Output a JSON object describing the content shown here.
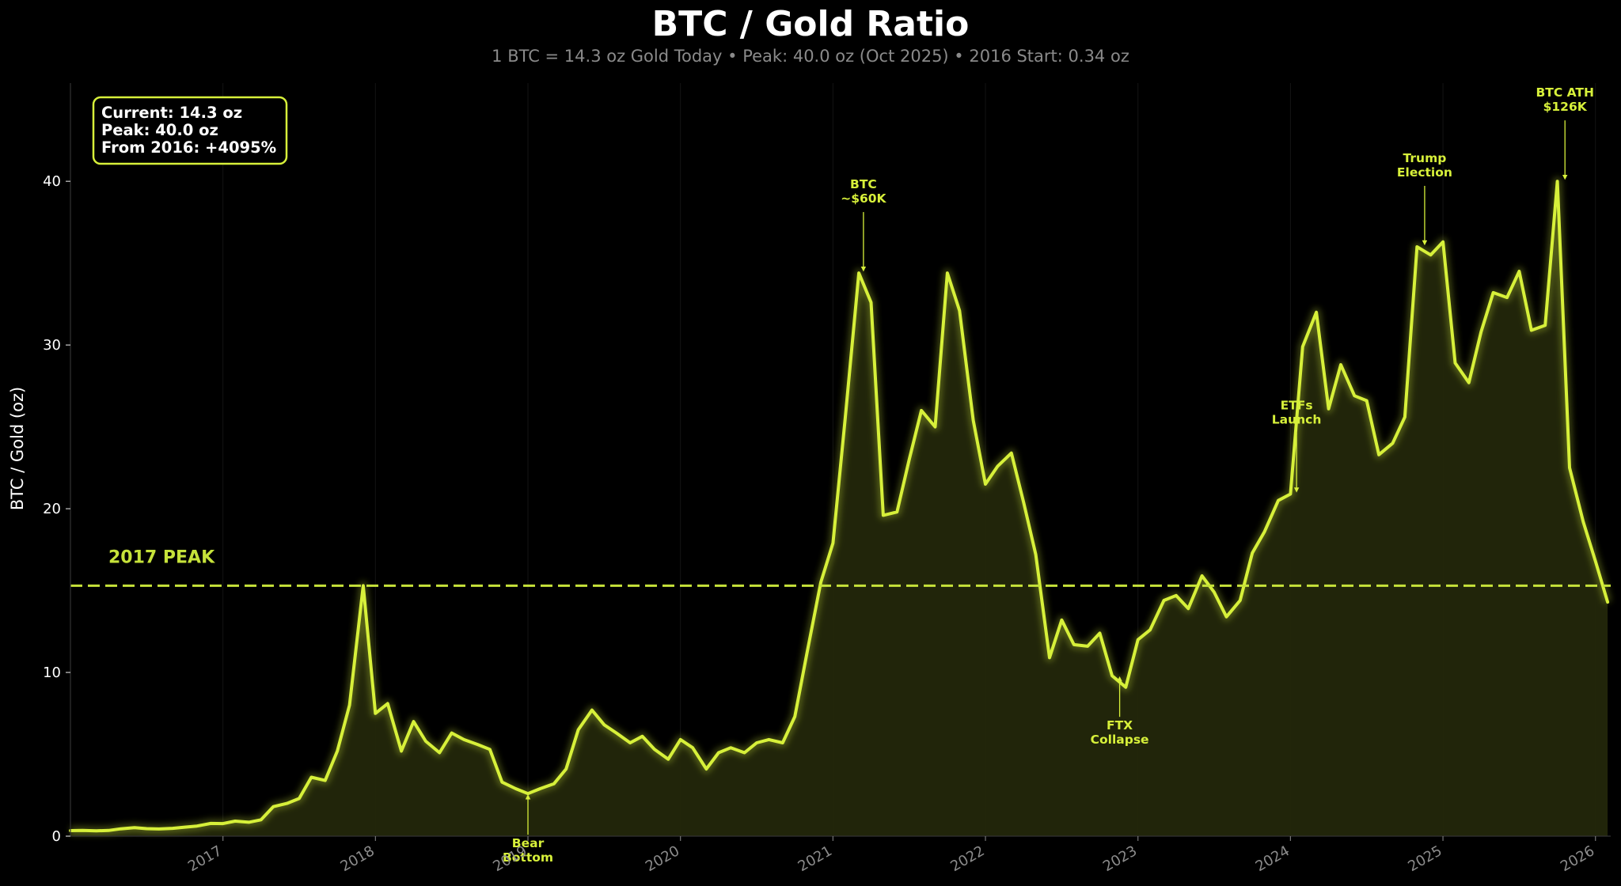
{
  "title": "BTC / Gold Ratio",
  "subtitle": "1 BTC = 14.3 oz Gold Today  •  Peak: 40.0 oz (Oct 2025)  •  2016 Start: 0.34 oz",
  "info_box": [
    "Current: 14.3 oz",
    "Peak: 40.0 oz",
    "From 2016: +4095%"
  ],
  "colors": {
    "line": "#d7f03a",
    "fill": "#23270b",
    "background": "#000000",
    "reference": "#c6e23a"
  },
  "chart_data": {
    "type": "area",
    "ylabel": "BTC / Gold (oz)",
    "xlim": [
      2016.0,
      2026.1
    ],
    "ylim": [
      0,
      46
    ],
    "y_ticks": [
      0,
      10,
      20,
      30,
      40
    ],
    "x_ticks": [
      {
        "value": 2017.0,
        "label": "2017"
      },
      {
        "value": 2018.0,
        "label": "2018"
      },
      {
        "value": 2019.0,
        "label": "2019"
      },
      {
        "value": 2020.0,
        "label": "2020"
      },
      {
        "value": 2021.0,
        "label": "2021"
      },
      {
        "value": 2022.0,
        "label": "2022"
      },
      {
        "value": 2023.0,
        "label": "2023"
      },
      {
        "value": 2024.0,
        "label": "2024"
      },
      {
        "value": 2025.0,
        "label": "2025"
      },
      {
        "value": 2026.0,
        "label": "2026"
      }
    ],
    "grid": false,
    "reference_line": {
      "y": 15.3,
      "label": "2017 PEAK"
    },
    "series": [
      {
        "x": [
          2016.0,
          2016.08,
          2016.17,
          2016.25,
          2016.33,
          2016.42,
          2016.5,
          2016.58,
          2016.67,
          2016.75,
          2016.83,
          2016.92,
          2017.0,
          2017.08,
          2017.17,
          2017.25,
          2017.33,
          2017.42,
          2017.5,
          2017.58,
          2017.67,
          2017.75,
          2017.83,
          2017.92,
          2018.0,
          2018.08,
          2018.17,
          2018.25,
          2018.33,
          2018.42,
          2018.5,
          2018.58,
          2018.67,
          2018.75,
          2018.83,
          2018.92,
          2019.0,
          2019.08,
          2019.17,
          2019.25,
          2019.33,
          2019.42,
          2019.5,
          2019.58,
          2019.67,
          2019.75,
          2019.83,
          2019.92,
          2020.0,
          2020.08,
          2020.17,
          2020.25,
          2020.33,
          2020.42,
          2020.5,
          2020.58,
          2020.67,
          2020.75,
          2020.83,
          2020.92,
          2021.0,
          2021.08,
          2021.17,
          2021.25,
          2021.33,
          2021.42,
          2021.5,
          2021.58,
          2021.67,
          2021.75,
          2021.83,
          2021.92,
          2022.0,
          2022.08,
          2022.17,
          2022.25,
          2022.33,
          2022.42,
          2022.5,
          2022.58,
          2022.67,
          2022.75,
          2022.83,
          2022.92,
          2023.0,
          2023.08,
          2023.17,
          2023.25,
          2023.33,
          2023.42,
          2023.5,
          2023.58,
          2023.67,
          2023.75,
          2023.83,
          2023.92,
          2024.0,
          2024.08,
          2024.17,
          2024.25,
          2024.33,
          2024.42,
          2024.5,
          2024.58,
          2024.67,
          2024.75,
          2024.83,
          2024.92,
          2025.0,
          2025.08,
          2025.17,
          2025.25,
          2025.33,
          2025.42,
          2025.5,
          2025.58,
          2025.67,
          2025.75,
          2025.83,
          2025.92,
          2026.0,
          2026.08
        ],
        "y": [
          0.34,
          0.35,
          0.33,
          0.35,
          0.45,
          0.52,
          0.46,
          0.44,
          0.48,
          0.55,
          0.62,
          0.78,
          0.77,
          0.92,
          0.85,
          1.0,
          1.8,
          2.0,
          2.3,
          3.6,
          3.4,
          5.2,
          8.0,
          15.3,
          7.5,
          8.1,
          5.2,
          7.0,
          5.8,
          5.1,
          6.3,
          5.9,
          5.6,
          5.3,
          3.3,
          2.9,
          2.6,
          2.9,
          3.2,
          4.1,
          6.5,
          7.7,
          6.8,
          6.3,
          5.7,
          6.1,
          5.3,
          4.7,
          5.9,
          5.4,
          4.1,
          5.1,
          5.4,
          5.1,
          5.7,
          5.9,
          5.7,
          7.3,
          11.2,
          15.5,
          17.9,
          25.5,
          34.4,
          32.6,
          19.6,
          19.8,
          23.0,
          26.0,
          25.0,
          34.4,
          32.1,
          25.4,
          21.5,
          22.6,
          23.4,
          20.4,
          17.2,
          10.9,
          13.2,
          11.7,
          11.6,
          12.4,
          9.8,
          9.1,
          12.0,
          12.6,
          14.4,
          14.7,
          13.9,
          15.9,
          14.9,
          13.4,
          14.4,
          17.3,
          18.6,
          20.5,
          20.9,
          29.9,
          32.0,
          26.1,
          28.8,
          26.9,
          26.6,
          23.3,
          24.0,
          25.6,
          36.0,
          35.5,
          36.3,
          28.9,
          27.7,
          30.8,
          33.2,
          32.9,
          34.5,
          30.9,
          31.2,
          40.0,
          22.5,
          19.2,
          16.8,
          14.3
        ]
      }
    ],
    "annotations": [
      {
        "x": 2019.0,
        "y": 2.6,
        "label": [
          "Bear",
          "Bottom"
        ],
        "direction": "below"
      },
      {
        "x": 2021.2,
        "y": 34.4,
        "label": [
          "BTC",
          "~$60K"
        ],
        "direction": "above"
      },
      {
        "x": 2022.88,
        "y": 9.8,
        "label": [
          "FTX",
          "Collapse"
        ],
        "direction": "below"
      },
      {
        "x": 2024.04,
        "y": 20.9,
        "label": [
          "ETFs",
          "Launch"
        ],
        "direction": "above"
      },
      {
        "x": 2024.88,
        "y": 36.0,
        "label": [
          "Trump",
          "Election"
        ],
        "direction": "above"
      },
      {
        "x": 2025.8,
        "y": 40.0,
        "label": [
          "BTC ATH",
          "$126K"
        ],
        "direction": "above"
      }
    ]
  }
}
